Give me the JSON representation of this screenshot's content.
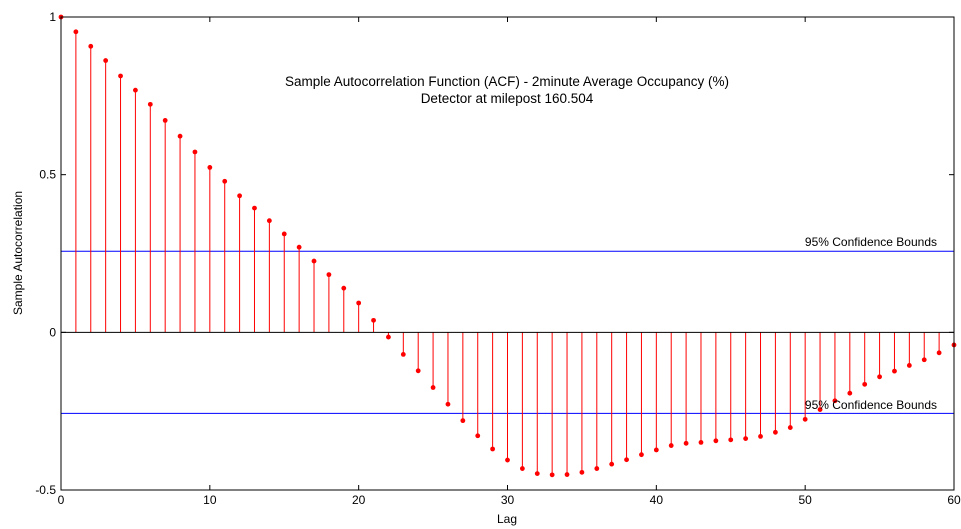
{
  "chart_data": {
    "type": "stem",
    "title": [
      "Sample Autocorrelation Function (ACF) - 2minute Average Occupancy (%)",
      "Detector at milepost 160.504"
    ],
    "xlabel": "Lag",
    "ylabel": "Sample Autocorrelation",
    "xlim": [
      0,
      60
    ],
    "ylim": [
      -0.5,
      1
    ],
    "xticks": [
      0,
      10,
      20,
      30,
      40,
      50,
      60
    ],
    "xtick_labels": [
      "0",
      "10",
      "20",
      "30",
      "40",
      "50",
      "60"
    ],
    "yticks": [
      -0.5,
      0,
      0.5,
      1
    ],
    "ytick_labels": [
      "-0.5",
      "0",
      "0.5",
      "1"
    ],
    "grid": false,
    "x": [
      0,
      1,
      2,
      3,
      4,
      5,
      6,
      7,
      8,
      9,
      10,
      11,
      12,
      13,
      14,
      15,
      16,
      17,
      18,
      19,
      20,
      21,
      22,
      23,
      24,
      25,
      26,
      27,
      28,
      29,
      30,
      31,
      32,
      33,
      34,
      35,
      36,
      37,
      38,
      39,
      40,
      41,
      42,
      43,
      44,
      45,
      46,
      47,
      48,
      49,
      50,
      51,
      52,
      53,
      54,
      55,
      56,
      57,
      58,
      59,
      60
    ],
    "values": [
      1.0,
      0.953,
      0.907,
      0.862,
      0.813,
      0.768,
      0.723,
      0.672,
      0.622,
      0.572,
      0.523,
      0.479,
      0.433,
      0.394,
      0.354,
      0.312,
      0.27,
      0.226,
      0.183,
      0.14,
      0.093,
      0.038,
      -0.015,
      -0.07,
      -0.122,
      -0.175,
      -0.228,
      -0.28,
      -0.328,
      -0.37,
      -0.405,
      -0.432,
      -0.448,
      -0.452,
      -0.451,
      -0.444,
      -0.432,
      -0.418,
      -0.404,
      -0.388,
      -0.373,
      -0.359,
      -0.352,
      -0.349,
      -0.344,
      -0.341,
      -0.337,
      -0.33,
      -0.317,
      -0.302,
      -0.276,
      -0.245,
      -0.217,
      -0.193,
      -0.165,
      -0.141,
      -0.123,
      -0.105,
      -0.087,
      -0.065,
      -0.04
    ],
    "confidence_bounds": {
      "upper": 0.257,
      "lower": -0.257,
      "upper_label": "95% Confidence Bounds",
      "lower_label": "95% Confidence Bounds"
    },
    "colors": {
      "stem": "#ff0000",
      "bounds": "#0000ff",
      "axes": "#000000",
      "background": "#ffffff"
    }
  }
}
